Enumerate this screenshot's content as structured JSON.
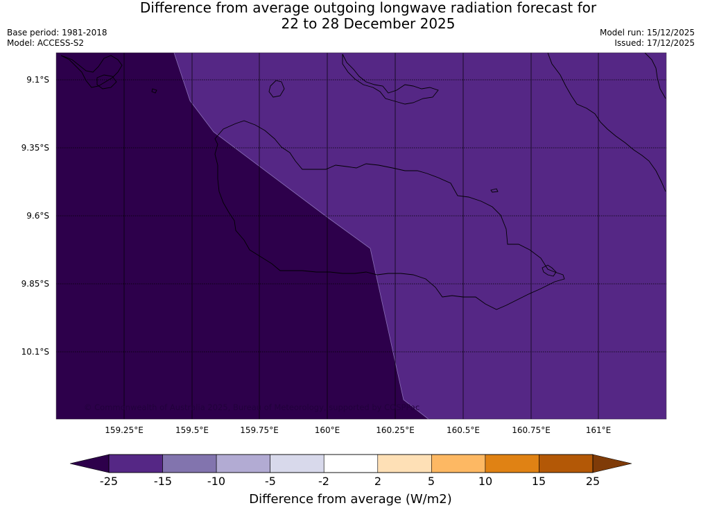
{
  "title_line1": "Difference from average outgoing longwave radiation forecast for",
  "title_line2": "22 to 28 December 2025",
  "base_period": "Base period: 1981-2018",
  "model": "Model: ACCESS-S2",
  "model_run": "Model run: 15/12/2025",
  "issued": "Issued: 17/12/2025",
  "copyright": "© Commonwealth of Australia 2025, Bureau of Meteorology, supported by COSPPac",
  "lat_labels": [
    "9.1°S",
    "9.35°S",
    "9.6°S",
    "9.85°S",
    "10.1°S"
  ],
  "lon_labels": [
    "159.25°E",
    "159.5°E",
    "159.75°E",
    "160°E",
    "160.25°E",
    "160.5°E",
    "160.75°E",
    "161°E"
  ],
  "colorbar": {
    "ticks": [
      "-25",
      "-15",
      "-10",
      "-5",
      "-2",
      "2",
      "5",
      "10",
      "15",
      "25"
    ],
    "label": "Difference from average (W/m2)",
    "colors": [
      "#552785",
      "#8274ae",
      "#b2abd3",
      "#d8d9eb",
      "#ffffff",
      "#fee0b6",
      "#fdb863",
      "#e08214",
      "#b35806"
    ],
    "under_color": "#2d004b",
    "over_color": "#7f3b08"
  },
  "map_fill": {
    "deep_color": "#2d004b",
    "mid_color": "#552785"
  }
}
